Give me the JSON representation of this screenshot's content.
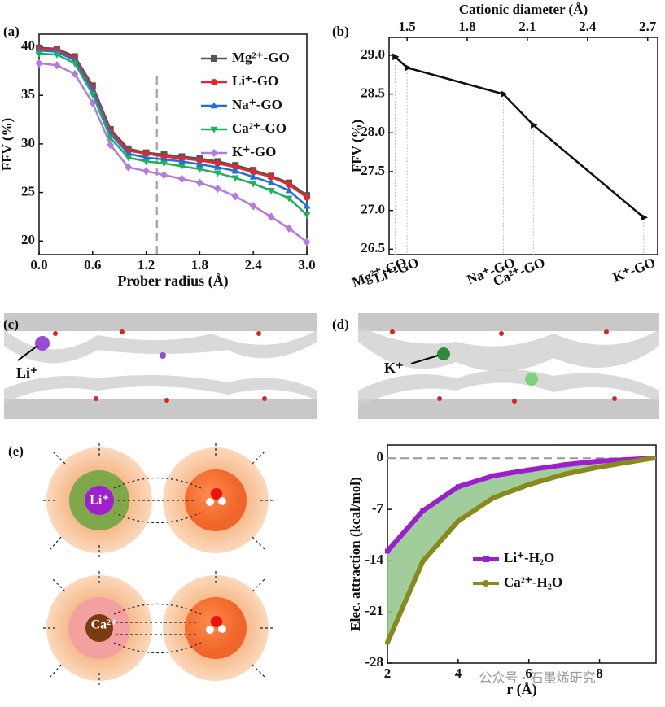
{
  "chart_data": [
    {
      "type": "line",
      "panel": "(a)",
      "xlabel": "Prober radius (Å)",
      "ylabel": "FFV (%)",
      "x": [
        0,
        0.2,
        0.4,
        0.6,
        0.8,
        1.0,
        1.2,
        1.4,
        1.6,
        1.8,
        2.0,
        2.2,
        2.4,
        2.6,
        2.8,
        3.0
      ],
      "xlim": [
        0,
        3
      ],
      "xticks": [
        {
          "value": 0,
          "label": "0.0"
        },
        0.6,
        1.2,
        1.8,
        2.4,
        {
          "value": 3,
          "label": "3.0"
        }
      ],
      "ylim": [
        18.6,
        41.3
      ],
      "yticks": [
        20,
        25,
        30,
        35,
        40
      ],
      "vline": 1.32,
      "legend": "upper right",
      "series": [
        {
          "name": "Mg²⁺-GO",
          "color": "#555555",
          "marker": "square",
          "values": [
            39.9,
            39.8,
            39.0,
            36.0,
            31.5,
            29.5,
            29.1,
            28.9,
            28.7,
            28.5,
            28.2,
            27.8,
            27.3,
            26.7,
            26.0,
            24.7
          ]
        },
        {
          "name": "Li⁺-GO",
          "color": "#e8262a",
          "marker": "circle",
          "values": [
            39.8,
            39.7,
            38.8,
            35.8,
            31.3,
            29.3,
            29.0,
            28.7,
            28.5,
            28.3,
            28.0,
            27.6,
            27.1,
            26.6,
            25.8,
            24.5
          ]
        },
        {
          "name": "Na⁺-GO",
          "color": "#1f6fe0",
          "marker": "tri-up",
          "values": [
            39.6,
            39.5,
            38.6,
            35.5,
            31.0,
            29.0,
            28.6,
            28.4,
            28.2,
            27.9,
            27.6,
            27.2,
            26.6,
            26.0,
            25.2,
            23.6
          ]
        },
        {
          "name": "Ca²⁺-GO",
          "color": "#21b05a",
          "marker": "tri-down",
          "values": [
            39.3,
            39.2,
            38.3,
            35.1,
            30.6,
            28.6,
            28.2,
            28.0,
            27.7,
            27.4,
            27.0,
            26.5,
            25.9,
            25.2,
            24.4,
            22.7
          ]
        },
        {
          "name": "K⁺-GO",
          "color": "#b57ae0",
          "marker": "diamond",
          "values": [
            38.3,
            38.1,
            37.2,
            34.2,
            29.9,
            27.6,
            27.2,
            26.8,
            26.4,
            26.0,
            25.4,
            24.6,
            23.6,
            22.5,
            21.3,
            19.9
          ]
        }
      ]
    },
    {
      "type": "line",
      "panel": "(b)",
      "xlabel": "Cationic diameter (Å)",
      "ylabel": "FFV (%)",
      "categories": [
        "Mg²⁺-GO",
        "Li⁺-GO",
        "Na⁺-GO",
        "Ca²⁺-GO",
        "K⁺-GO"
      ],
      "x": [
        1.44,
        1.5,
        1.98,
        2.13,
        2.68
      ],
      "values": [
        28.98,
        28.84,
        28.5,
        28.1,
        26.91
      ],
      "color": "#111111",
      "marker": "tri-right",
      "xlim": [
        1.41,
        2.75
      ],
      "xticks": [
        1.5,
        1.8,
        2.1,
        2.4,
        2.7
      ],
      "ylim": [
        26.43,
        29.23
      ],
      "yticks": [
        26.5,
        {
          "value": 27,
          "label": "27.0"
        },
        27.5,
        {
          "value": 28,
          "label": "28.0"
        },
        28.5,
        {
          "value": 29,
          "label": "29.0"
        }
      ]
    },
    {
      "type": "line",
      "panel": "(e)",
      "xlabel": "r (Å)",
      "ylabel": "Elec. attraction (kcal/mol)",
      "x": [
        2,
        3,
        4,
        5,
        6,
        7,
        8,
        9.5
      ],
      "xlim": [
        2,
        9.6
      ],
      "xticks": [
        2,
        4,
        6,
        8
      ],
      "ylim": [
        -28,
        1.8
      ],
      "yticks": [
        0,
        -7,
        -14,
        -21,
        -28
      ],
      "hline": 0,
      "fill_between": "#8fc48a",
      "legend": "center right",
      "series": [
        {
          "name": "Li⁺-H₂O",
          "color": "#9b1fcf",
          "marker": "square",
          "values": [
            -12.7,
            -7.2,
            -3.9,
            -2.4,
            -1.6,
            -0.9,
            -0.4,
            0
          ]
        },
        {
          "name": "Ca²⁺-H₂O",
          "color": "#8a8a1a",
          "marker": "circle",
          "values": [
            -25.2,
            -14.1,
            -8.6,
            -5.4,
            -3.6,
            -2.2,
            -1.2,
            0
          ]
        }
      ]
    }
  ],
  "diagrams": {
    "c_panel": "(c)",
    "c_ion": "Li⁺",
    "d_panel": "(d)",
    "d_ion": "K⁺",
    "e_ion1": "Li⁺",
    "e_ion2": "Ca²⁺"
  },
  "watermark": "公众号 · 石墨烯研究"
}
